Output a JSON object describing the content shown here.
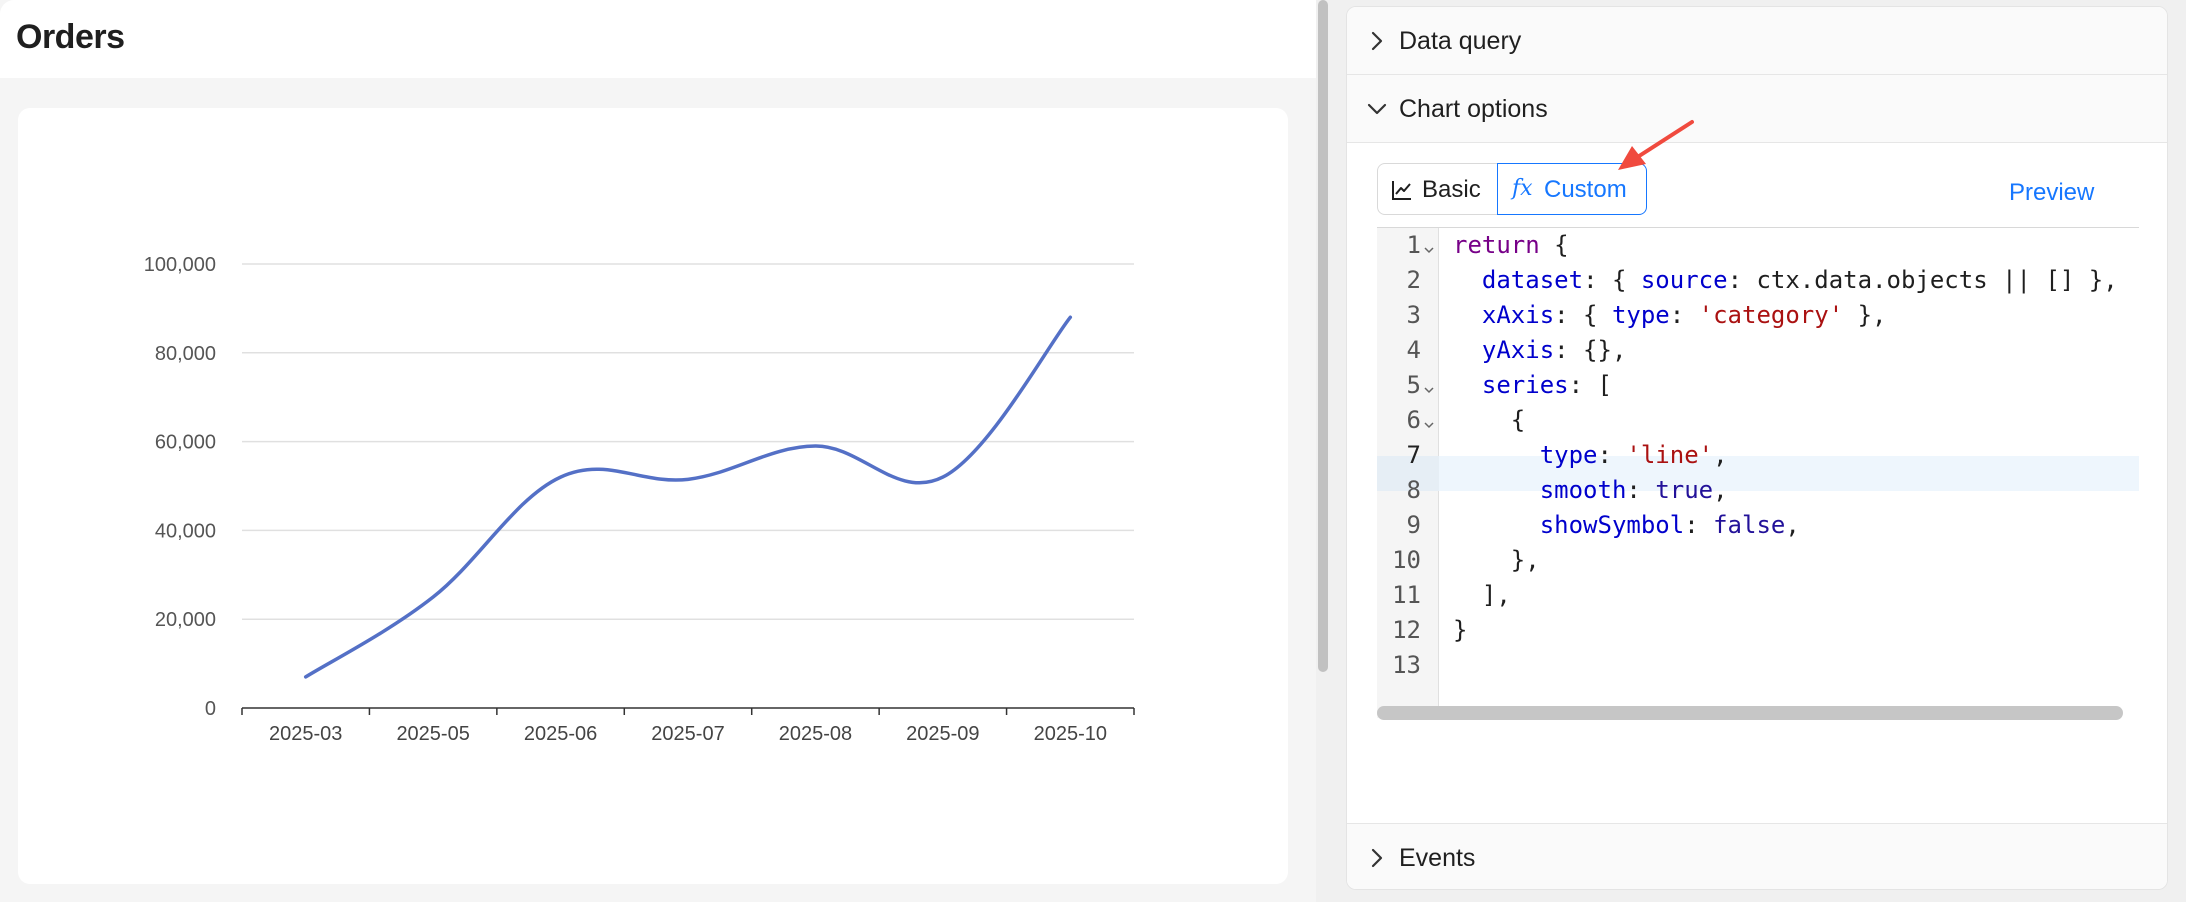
{
  "page": {
    "title": "Orders"
  },
  "chart_data": {
    "type": "line",
    "categories": [
      "2025-03",
      "2025-05",
      "2025-06",
      "2025-07",
      "2025-08",
      "2025-09",
      "2025-10"
    ],
    "values": [
      7000,
      25000,
      52000,
      51500,
      59000,
      52000,
      88000
    ],
    "ylim": [
      0,
      100000
    ],
    "yticks": [
      "0",
      "20,000",
      "40,000",
      "60,000",
      "80,000",
      "100,000"
    ],
    "smooth": true,
    "grid": true,
    "line_color": "#5470c6"
  },
  "panel": {
    "sections": [
      {
        "label": "Data query",
        "expanded": false
      },
      {
        "label": "Chart options",
        "expanded": true
      },
      {
        "label": "Events",
        "expanded": false
      }
    ],
    "tabs": {
      "basic_icon": "line-chart-icon",
      "basic_label": "Basic",
      "custom_icon": "fx",
      "custom_label": "Custom"
    },
    "preview_label": "Preview",
    "editor": {
      "line_numbers": [
        "1",
        "2",
        "3",
        "4",
        "5",
        "6",
        "7",
        "8",
        "9",
        "10",
        "11",
        "12",
        "13"
      ],
      "active_line": 7
    }
  },
  "colors": {
    "accent": "#1677ff",
    "annotation_arrow": "#f04a3e"
  }
}
